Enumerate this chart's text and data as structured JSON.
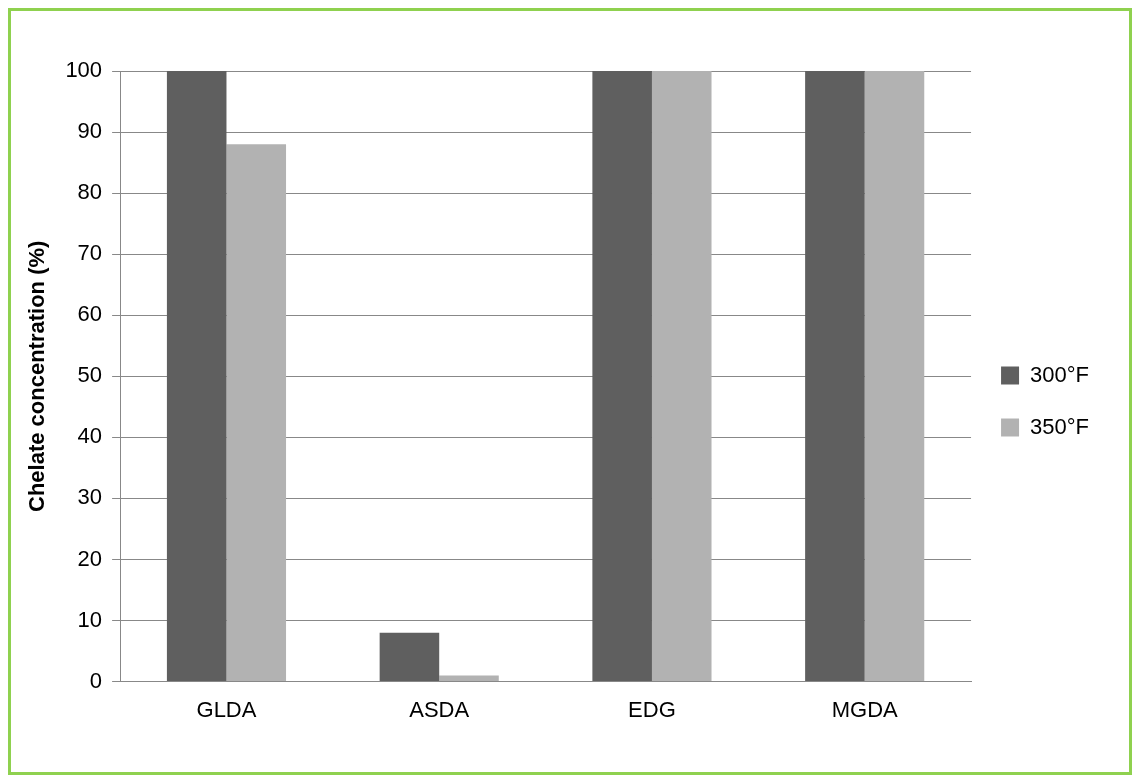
{
  "chart_data": {
    "type": "bar",
    "ylabel": "Chelate concentration (%)",
    "categories": [
      "GLDA",
      "ASDA",
      "EDG",
      "MGDA"
    ],
    "series": [
      {
        "name": "300°F",
        "color": "#5f5f5f",
        "values": [
          100,
          8,
          100,
          100
        ]
      },
      {
        "name": "350°F",
        "color": "#b2b2b2",
        "values": [
          88,
          1,
          100,
          100
        ]
      }
    ],
    "ylim": [
      0,
      100
    ],
    "yticks": [
      0,
      10,
      20,
      30,
      40,
      50,
      60,
      70,
      80,
      90,
      100
    ],
    "grid": "y",
    "legend": "right"
  }
}
